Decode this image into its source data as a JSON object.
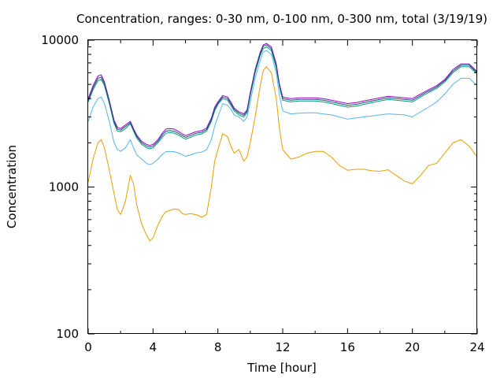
{
  "chart_data": {
    "type": "line",
    "title": "Concentration, ranges: 0-30 nm, 0-100 nm, 0-300 nm, total (3/19/19)",
    "xlabel": "Time [hour]",
    "ylabel": "Concentration",
    "xlim": [
      0,
      24
    ],
    "ylim": [
      100,
      10000
    ],
    "y_scale": "log",
    "grid": false,
    "legend": "none",
    "x_ticks": [
      {
        "value": 0,
        "label": "0"
      },
      {
        "value": 4,
        "label": "4"
      },
      {
        "value": 8,
        "label": "8"
      },
      {
        "value": 12,
        "label": "12"
      },
      {
        "value": 16,
        "label": "16"
      },
      {
        "value": 20,
        "label": "20"
      },
      {
        "value": 24,
        "label": "24"
      }
    ],
    "y_ticks": [
      {
        "value": 100,
        "label": "100"
      },
      {
        "value": 1000,
        "label": "1000"
      },
      {
        "value": 10000,
        "label": "10000"
      }
    ],
    "series": [
      {
        "color": "#e69f00",
        "x": [
          0,
          0.3,
          0.6,
          0.8,
          1.0,
          1.3,
          1.6,
          1.8,
          2.0,
          2.3,
          2.6,
          2.8,
          3.0,
          3.3,
          3.6,
          3.8,
          4.0,
          4.3,
          4.6,
          4.8,
          5.0,
          5.3,
          5.6,
          5.8,
          6.0,
          6.3,
          6.6,
          6.8,
          7.0,
          7.3,
          7.6,
          7.8,
          8.0,
          8.3,
          8.6,
          8.8,
          9.0,
          9.3,
          9.6,
          9.8,
          10.0,
          10.3,
          10.6,
          10.8,
          11.0,
          11.3,
          11.6,
          11.8,
          12.0,
          12.5,
          13.0,
          13.5,
          14.0,
          14.5,
          15.0,
          15.5,
          16.0,
          16.5,
          17.0,
          17.5,
          18.0,
          18.5,
          19.0,
          19.5,
          20.0,
          20.5,
          21.0,
          21.5,
          22.0,
          22.5,
          23.0,
          23.5,
          24.0
        ],
        "y": [
          1080,
          1550,
          2000,
          2100,
          1850,
          1300,
          900,
          700,
          650,
          800,
          1200,
          1050,
          750,
          560,
          470,
          430,
          450,
          550,
          640,
          680,
          690,
          710,
          700,
          660,
          650,
          660,
          650,
          640,
          620,
          650,
          1000,
          1500,
          1800,
          2300,
          2200,
          1900,
          1700,
          1800,
          1500,
          1600,
          2000,
          3000,
          4800,
          6200,
          6600,
          6000,
          4000,
          2500,
          1800,
          1550,
          1600,
          1700,
          1750,
          1750,
          1600,
          1400,
          1300,
          1320,
          1320,
          1290,
          1280,
          1310,
          1200,
          1100,
          1050,
          1200,
          1400,
          1450,
          1700,
          2000,
          2100,
          1900,
          1600
        ]
      },
      {
        "color": "#56b4e9",
        "x": [
          0,
          0.3,
          0.6,
          0.8,
          1.0,
          1.3,
          1.6,
          1.8,
          2.0,
          2.3,
          2.6,
          2.8,
          3.0,
          3.3,
          3.6,
          3.8,
          4.0,
          4.3,
          4.6,
          4.8,
          5.0,
          5.3,
          5.6,
          5.8,
          6.0,
          6.3,
          6.6,
          6.8,
          7.0,
          7.3,
          7.6,
          7.8,
          8.0,
          8.3,
          8.6,
          8.8,
          9.0,
          9.3,
          9.6,
          9.8,
          10.0,
          10.3,
          10.6,
          10.8,
          11.0,
          11.3,
          11.6,
          11.8,
          12.0,
          12.5,
          13.0,
          13.5,
          14.0,
          14.5,
          15.0,
          15.5,
          16.0,
          16.5,
          17.0,
          17.5,
          18.0,
          18.5,
          19.0,
          19.5,
          20.0,
          20.5,
          21.0,
          21.5,
          22.0,
          22.5,
          23.0,
          23.5,
          24.0
        ],
        "y": [
          2800,
          3500,
          4000,
          4100,
          3700,
          2800,
          2000,
          1800,
          1750,
          1850,
          2100,
          1850,
          1650,
          1550,
          1450,
          1420,
          1450,
          1550,
          1680,
          1740,
          1750,
          1740,
          1700,
          1660,
          1620,
          1650,
          1700,
          1720,
          1730,
          1790,
          2100,
          2600,
          3000,
          3700,
          3600,
          3400,
          3100,
          3000,
          2800,
          3000,
          3800,
          5500,
          7200,
          8300,
          8500,
          8000,
          6000,
          4200,
          3300,
          3150,
          3180,
          3200,
          3200,
          3150,
          3100,
          3000,
          2900,
          2950,
          3000,
          3050,
          3100,
          3150,
          3120,
          3100,
          3000,
          3250,
          3500,
          3800,
          4300,
          5000,
          5500,
          5500,
          4900
        ]
      },
      {
        "color": "#009e73",
        "x": [
          0,
          0.3,
          0.6,
          0.8,
          1.0,
          1.3,
          1.6,
          1.8,
          2.0,
          2.3,
          2.6,
          2.8,
          3.0,
          3.3,
          3.6,
          3.8,
          4.0,
          4.3,
          4.6,
          4.8,
          5.0,
          5.3,
          5.6,
          5.8,
          6.0,
          6.3,
          6.6,
          6.8,
          7.0,
          7.3,
          7.6,
          7.8,
          8.0,
          8.3,
          8.6,
          8.8,
          9.0,
          9.3,
          9.6,
          9.8,
          10.0,
          10.3,
          10.6,
          10.8,
          11.0,
          11.3,
          11.6,
          11.8,
          12.0,
          12.5,
          13.0,
          13.5,
          14.0,
          14.5,
          15.0,
          15.5,
          16.0,
          16.5,
          17.0,
          17.5,
          18.0,
          18.5,
          19.0,
          19.5,
          20.0,
          20.5,
          21.0,
          21.5,
          22.0,
          22.5,
          23.0,
          23.5,
          24.0
        ],
        "y": [
          3800,
          4600,
          5300,
          5400,
          4900,
          3700,
          2700,
          2400,
          2380,
          2500,
          2700,
          2400,
          2150,
          1950,
          1850,
          1820,
          1850,
          2000,
          2200,
          2320,
          2350,
          2330,
          2250,
          2180,
          2120,
          2180,
          2250,
          2280,
          2300,
          2400,
          2800,
          3300,
          3650,
          4000,
          3900,
          3600,
          3300,
          3100,
          3000,
          3200,
          4200,
          6000,
          7800,
          8800,
          9000,
          8500,
          6500,
          4800,
          3900,
          3800,
          3850,
          3850,
          3850,
          3800,
          3700,
          3600,
          3500,
          3550,
          3650,
          3750,
          3850,
          3950,
          3900,
          3850,
          3800,
          4100,
          4400,
          4700,
          5200,
          6000,
          6600,
          6600,
          5900
        ]
      },
      {
        "color": "#9400d3",
        "x": [
          0,
          0.3,
          0.6,
          0.8,
          1.0,
          1.3,
          1.6,
          1.8,
          2.0,
          2.3,
          2.6,
          2.8,
          3.0,
          3.3,
          3.6,
          3.8,
          4.0,
          4.3,
          4.6,
          4.8,
          5.0,
          5.3,
          5.6,
          5.8,
          6.0,
          6.3,
          6.6,
          6.8,
          7.0,
          7.3,
          7.6,
          7.8,
          8.0,
          8.3,
          8.6,
          8.8,
          9.0,
          9.3,
          9.6,
          9.8,
          10.0,
          10.3,
          10.6,
          10.8,
          11.0,
          11.3,
          11.6,
          11.8,
          12.0,
          12.5,
          13.0,
          13.5,
          14.0,
          14.5,
          15.0,
          15.5,
          16.0,
          16.5,
          17.0,
          17.5,
          18.0,
          18.5,
          19.0,
          19.5,
          20.0,
          20.5,
          21.0,
          21.5,
          22.0,
          22.5,
          23.0,
          23.5,
          24.0
        ],
        "y": [
          4000,
          4900,
          5700,
          5800,
          5200,
          3900,
          2850,
          2550,
          2500,
          2650,
          2800,
          2500,
          2250,
          2050,
          1950,
          1920,
          1950,
          2100,
          2350,
          2480,
          2500,
          2480,
          2380,
          2300,
          2240,
          2300,
          2370,
          2400,
          2420,
          2520,
          2950,
          3500,
          3800,
          4200,
          4100,
          3800,
          3450,
          3250,
          3150,
          3350,
          4400,
          6300,
          8200,
          9300,
          9500,
          9000,
          6900,
          5000,
          4100,
          4000,
          4050,
          4050,
          4050,
          4000,
          3900,
          3800,
          3700,
          3750,
          3850,
          3950,
          4050,
          4150,
          4100,
          4050,
          4000,
          4300,
          4600,
          4900,
          5400,
          6300,
          6900,
          6900,
          6100
        ]
      },
      {
        "color": "#1f4e79",
        "x": [
          0,
          0.3,
          0.6,
          0.8,
          1.0,
          1.3,
          1.6,
          1.8,
          2.0,
          2.3,
          2.6,
          2.8,
          3.0,
          3.3,
          3.6,
          3.8,
          4.0,
          4.3,
          4.6,
          4.8,
          5.0,
          5.3,
          5.6,
          5.8,
          6.0,
          6.3,
          6.6,
          6.8,
          7.0,
          7.3,
          7.6,
          7.8,
          8.0,
          8.3,
          8.6,
          8.8,
          9.0,
          9.3,
          9.6,
          9.8,
          10.0,
          10.3,
          10.6,
          10.8,
          11.0,
          11.3,
          11.6,
          11.8,
          12.0,
          12.5,
          13.0,
          13.5,
          14.0,
          14.5,
          15.0,
          15.5,
          16.0,
          16.5,
          17.0,
          17.5,
          18.0,
          18.5,
          19.0,
          19.5,
          20.0,
          20.5,
          21.0,
          21.5,
          22.0,
          22.5,
          23.0,
          23.5,
          24.0
        ],
        "y": [
          3900,
          4750,
          5500,
          5600,
          5050,
          3800,
          2780,
          2480,
          2440,
          2580,
          2750,
          2450,
          2200,
          2000,
          1900,
          1870,
          1900,
          2050,
          2280,
          2400,
          2420,
          2400,
          2310,
          2240,
          2180,
          2240,
          2310,
          2340,
          2360,
          2460,
          2880,
          3400,
          3720,
          4100,
          4000,
          3700,
          3380,
          3180,
          3080,
          3280,
          4300,
          6150,
          8000,
          9100,
          9300,
          8750,
          6700,
          4900,
          4000,
          3900,
          3950,
          3950,
          3950,
          3900,
          3800,
          3700,
          3600,
          3650,
          3750,
          3850,
          3950,
          4050,
          4000,
          3950,
          3900,
          4200,
          4500,
          4800,
          5300,
          6150,
          6750,
          6750,
          6000
        ]
      }
    ]
  }
}
